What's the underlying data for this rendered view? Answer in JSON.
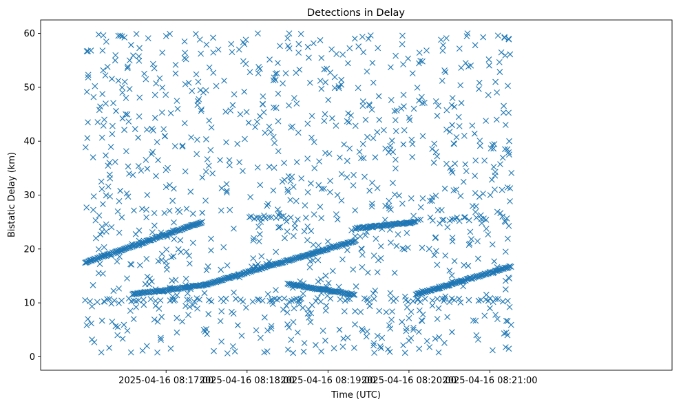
{
  "chart_data": {
    "type": "scatter",
    "title": "Detections in Delay",
    "xlabel": "Time (UTC)",
    "ylabel": "Bistatic Delay (km)",
    "marker": "x",
    "color": "#1f77b4",
    "x_unit": "seconds after 2025-04-16 08:16:00",
    "xlim": [
      -33,
      435
    ],
    "ylim": [
      -2.5,
      62.5
    ],
    "x_ticks": [
      {
        "value": 60,
        "label": "2025-04-16 08:17:00"
      },
      {
        "value": 120,
        "label": "2025-04-16 08:18:00"
      },
      {
        "value": 180,
        "label": "2025-04-16 08:19:00"
      },
      {
        "value": 240,
        "label": "2025-04-16 08:20:00"
      },
      {
        "value": 300,
        "label": "2025-04-16 08:21:00"
      }
    ],
    "y_ticks": [
      {
        "value": 0,
        "label": "0"
      },
      {
        "value": 10,
        "label": "10"
      },
      {
        "value": 20,
        "label": "20"
      },
      {
        "value": 30,
        "label": "30"
      },
      {
        "value": 40,
        "label": "40"
      },
      {
        "value": 50,
        "label": "50"
      },
      {
        "value": 60,
        "label": "60"
      }
    ],
    "x_range_seconds": [
      0,
      316
    ],
    "track_segments": [
      {
        "name": "track-a",
        "x": [
          0,
          87
        ],
        "y": [
          17.5,
          25.0
        ]
      },
      {
        "name": "track-b",
        "x": [
          35,
          88
        ],
        "y": [
          11.6,
          13.3
        ]
      },
      {
        "name": "track-c",
        "x": [
          88,
          200
        ],
        "y": [
          13.3,
          21.5
        ]
      },
      {
        "name": "track-d",
        "x": [
          150,
          200
        ],
        "y": [
          13.5,
          11.5
        ]
      },
      {
        "name": "track-e",
        "x": [
          200,
          245
        ],
        "y": [
          23.8,
          25.0
        ]
      },
      {
        "name": "track-f",
        "x": [
          245,
          316
        ],
        "y": [
          11.5,
          16.8
        ]
      },
      {
        "name": "track-g",
        "x": [
          120,
          155
        ],
        "y": [
          25.8,
          26.0
        ]
      },
      {
        "name": "track-h",
        "x": [
          245,
          300
        ],
        "y": [
          25.5,
          25.5
        ]
      },
      {
        "name": "track-i",
        "x": [
          0,
          316
        ],
        "y": [
          10.5,
          10.5
        ]
      }
    ],
    "clutter_points": [
      {
        "x": 2,
        "y": 56.7
      },
      {
        "x": 10,
        "y": 59.8
      },
      {
        "x": 26,
        "y": 59.6
      },
      {
        "x": 38,
        "y": 59.9
      },
      {
        "x": 60,
        "y": 59.5
      },
      {
        "x": 82,
        "y": 59.9
      },
      {
        "x": 118,
        "y": 58.0
      },
      {
        "x": 160,
        "y": 59.9
      },
      {
        "x": 210,
        "y": 59.0
      },
      {
        "x": 235,
        "y": 58.0
      },
      {
        "x": 265,
        "y": 56.8
      },
      {
        "x": 295,
        "y": 59.3
      },
      {
        "x": 306,
        "y": 59.6
      },
      {
        "x": 314,
        "y": 58.9
      },
      {
        "x": 15,
        "y": 52.2
      },
      {
        "x": 45,
        "y": 51.5
      },
      {
        "x": 95,
        "y": 52.7
      },
      {
        "x": 140,
        "y": 51.8
      },
      {
        "x": 185,
        "y": 51.9
      },
      {
        "x": 250,
        "y": 54.8
      },
      {
        "x": 282,
        "y": 54.5
      },
      {
        "x": 2,
        "y": 43.5
      },
      {
        "x": 30,
        "y": 45.0
      },
      {
        "x": 68,
        "y": 47.5
      },
      {
        "x": 115,
        "y": 45.0
      },
      {
        "x": 155,
        "y": 48.0
      },
      {
        "x": 230,
        "y": 43.9
      },
      {
        "x": 272,
        "y": 43.0
      },
      {
        "x": 305,
        "y": 44.0
      },
      {
        "x": 18,
        "y": 36.0
      },
      {
        "x": 50,
        "y": 38.0
      },
      {
        "x": 100,
        "y": 36.5
      },
      {
        "x": 170,
        "y": 35.0
      },
      {
        "x": 215,
        "y": 37.0
      },
      {
        "x": 260,
        "y": 38.0
      },
      {
        "x": 296,
        "y": 36.4
      },
      {
        "x": 313,
        "y": 38.5
      },
      {
        "x": 12,
        "y": 32.5
      },
      {
        "x": 60,
        "y": 31.5
      },
      {
        "x": 105,
        "y": 30.5
      },
      {
        "x": 150,
        "y": 31.0
      },
      {
        "x": 190,
        "y": 29.0
      },
      {
        "x": 225,
        "y": 28.0
      },
      {
        "x": 275,
        "y": 31.0
      },
      {
        "x": 8,
        "y": 22.0
      },
      {
        "x": 40,
        "y": 21.5
      },
      {
        "x": 75,
        "y": 19.5
      },
      {
        "x": 125,
        "y": 22.0
      },
      {
        "x": 205,
        "y": 20.0
      },
      {
        "x": 255,
        "y": 20.0
      },
      {
        "x": 285,
        "y": 21.0
      },
      {
        "x": 10,
        "y": 15.5
      },
      {
        "x": 48,
        "y": 14.5
      },
      {
        "x": 110,
        "y": 8.0
      },
      {
        "x": 165,
        "y": 8.0
      },
      {
        "x": 218,
        "y": 8.5
      },
      {
        "x": 262,
        "y": 9.0
      },
      {
        "x": 300,
        "y": 9.0
      },
      {
        "x": 2,
        "y": 7.0
      },
      {
        "x": 20,
        "y": 6.5
      },
      {
        "x": 36,
        "y": 7.0
      },
      {
        "x": 68,
        "y": 4.5
      },
      {
        "x": 88,
        "y": 5.0
      },
      {
        "x": 130,
        "y": 3.5
      },
      {
        "x": 178,
        "y": 3.0
      },
      {
        "x": 220,
        "y": 3.5
      },
      {
        "x": 240,
        "y": 3.0
      },
      {
        "x": 290,
        "y": 4.0
      },
      {
        "x": 313,
        "y": 4.0
      },
      {
        "x": 12,
        "y": 0.8
      },
      {
        "x": 34,
        "y": 0.8
      },
      {
        "x": 135,
        "y": 1.0
      },
      {
        "x": 175,
        "y": 1.0
      },
      {
        "x": 262,
        "y": 0.8
      },
      {
        "x": 302,
        "y": 1.2
      },
      {
        "x": 314,
        "y": 1.5
      },
      {
        "x": 24,
        "y": 4.0
      },
      {
        "x": 56,
        "y": 3.5
      },
      {
        "x": 150,
        "y": 6.0
      },
      {
        "x": 200,
        "y": 6.0
      }
    ]
  }
}
